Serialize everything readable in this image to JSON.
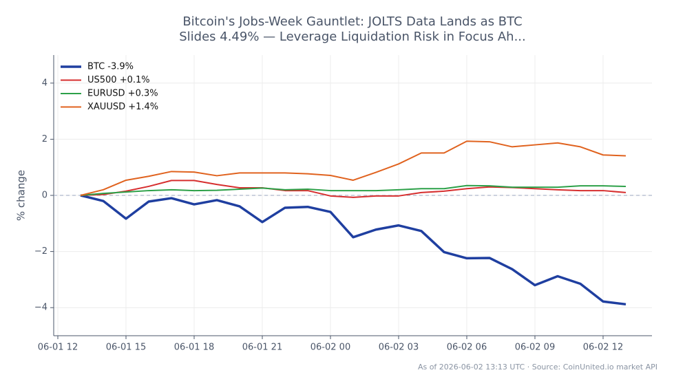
{
  "chart_data": {
    "type": "line",
    "title": "Bitcoin's Jobs-Week Gauntlet: JOLTS Data Lands as BTC\nSlides 4.49% — Leverage Liquidation Risk in Focus Ah...",
    "y_label": "% change",
    "footnote": "As of 2026-06-02 13:13 UTC · Source: CoinUnited.io market API",
    "x": [
      "06-01 13",
      "06-01 14",
      "06-01 15",
      "06-01 16",
      "06-01 17",
      "06-01 18",
      "06-01 19",
      "06-01 20",
      "06-01 21",
      "06-01 22",
      "06-01 23",
      "06-02 00",
      "06-02 01",
      "06-02 02",
      "06-02 03",
      "06-02 04",
      "06-02 05",
      "06-02 06",
      "06-02 07",
      "06-02 08",
      "06-02 09",
      "06-02 10",
      "06-02 11",
      "06-02 12",
      "06-02 13"
    ],
    "series": [
      {
        "name": "BTC -3.9%",
        "color": "#1f3fa0",
        "line_width": 3.5,
        "values": [
          0,
          -0.2,
          -0.83,
          -0.22,
          -0.1,
          -0.32,
          -0.17,
          -0.39,
          -0.95,
          -0.44,
          -0.41,
          -0.59,
          -1.49,
          -1.22,
          -1.07,
          -1.27,
          -2.02,
          -2.24,
          -2.23,
          -2.63,
          -3.2,
          -2.88,
          -3.15,
          -3.78,
          -3.88
        ]
      },
      {
        "name": "US500 +0.1%",
        "color": "#d62e2e",
        "line_width": 2,
        "values": [
          0,
          0.03,
          0.15,
          0.32,
          0.53,
          0.53,
          0.39,
          0.27,
          0.27,
          0.17,
          0.17,
          -0.02,
          -0.07,
          -0.02,
          -0.02,
          0.1,
          0.15,
          0.24,
          0.3,
          0.28,
          0.24,
          0.2,
          0.17,
          0.17,
          0.1
        ]
      },
      {
        "name": "EURUSD +0.3%",
        "color": "#2ca048",
        "line_width": 2,
        "values": [
          0,
          0.07,
          0.12,
          0.17,
          0.2,
          0.17,
          0.18,
          0.22,
          0.26,
          0.2,
          0.22,
          0.17,
          0.17,
          0.17,
          0.2,
          0.24,
          0.24,
          0.35,
          0.34,
          0.29,
          0.29,
          0.29,
          0.34,
          0.34,
          0.32
        ]
      },
      {
        "name": "XAUUSD +1.4%",
        "color": "#e0621e",
        "line_width": 2,
        "values": [
          0,
          0.2,
          0.54,
          0.68,
          0.85,
          0.83,
          0.7,
          0.8,
          0.8,
          0.8,
          0.77,
          0.71,
          0.54,
          0.82,
          1.12,
          1.51,
          1.51,
          1.93,
          1.91,
          1.73,
          1.8,
          1.87,
          1.73,
          1.44,
          1.41
        ]
      }
    ],
    "xlim": [
      "06-01 12",
      "06-02 14"
    ],
    "xticks": [
      "06-01 12",
      "06-01 15",
      "06-01 18",
      "06-01 21",
      "06-02 00",
      "06-02 03",
      "06-02 06",
      "06-02 09",
      "06-02 12"
    ],
    "ylim": [
      -5,
      5
    ],
    "yticks": [
      {
        "value": -4,
        "label": "−4"
      },
      {
        "value": -2,
        "label": "−2"
      },
      0,
      2,
      4
    ],
    "reference_line": 0,
    "grid": true,
    "legend": "upper left"
  }
}
